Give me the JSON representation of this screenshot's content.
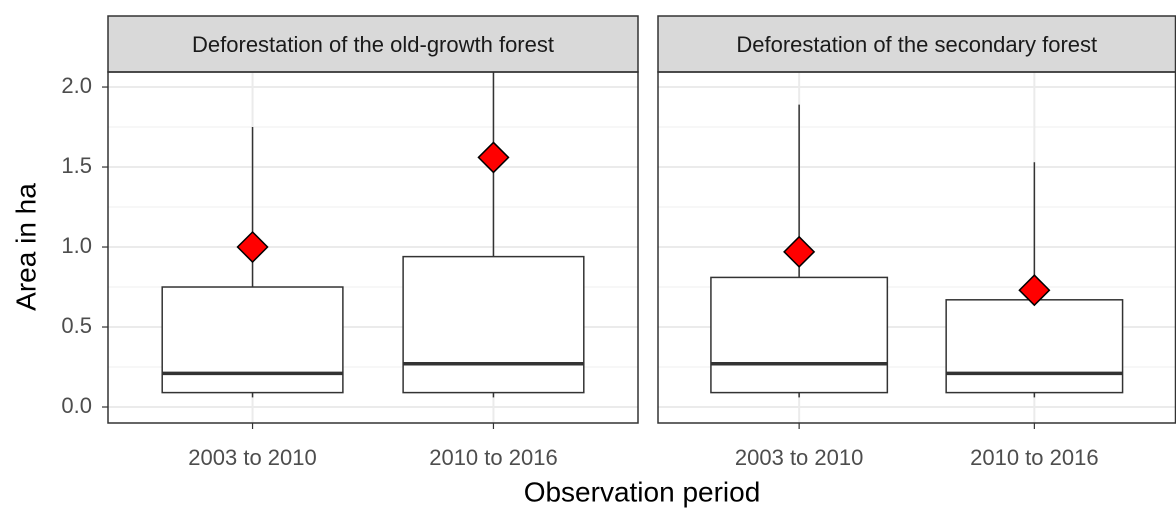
{
  "chart_data": {
    "type": "box",
    "xlabel": "Observation period",
    "ylabel": "Area in ha",
    "ylim": [
      -0.1,
      2.094
    ],
    "yticks": [
      {
        "value": 0,
        "label": "0.0"
      },
      0.5,
      {
        "value": 1,
        "label": "1.0"
      },
      1.5,
      {
        "value": 2,
        "label": "2.0"
      }
    ],
    "yminorticks": [
      0.25,
      0.75,
      1.25,
      1.75
    ],
    "grid": true,
    "mean_color": "#ff0000",
    "facets": [
      {
        "title": "Deforestation of the old-growth forest",
        "categories": [
          "2003 to 2010",
          "2010 to 2016"
        ],
        "min": [
          0.06,
          0.06
        ],
        "q1": [
          0.09,
          0.09
        ],
        "median": [
          0.21,
          0.27
        ],
        "q3": [
          0.75,
          0.94
        ],
        "max": [
          1.75,
          2.2
        ],
        "mean": [
          1.0,
          1.56
        ]
      },
      {
        "title": "Deforestation of the secondary forest",
        "categories": [
          "2003 to 2010",
          "2010 to 2016"
        ],
        "min": [
          0.06,
          0.06
        ],
        "q1": [
          0.09,
          0.09
        ],
        "median": [
          0.27,
          0.21
        ],
        "q3": [
          0.81,
          0.67
        ],
        "max": [
          1.89,
          1.53
        ],
        "mean": [
          0.97,
          0.73
        ]
      }
    ]
  }
}
